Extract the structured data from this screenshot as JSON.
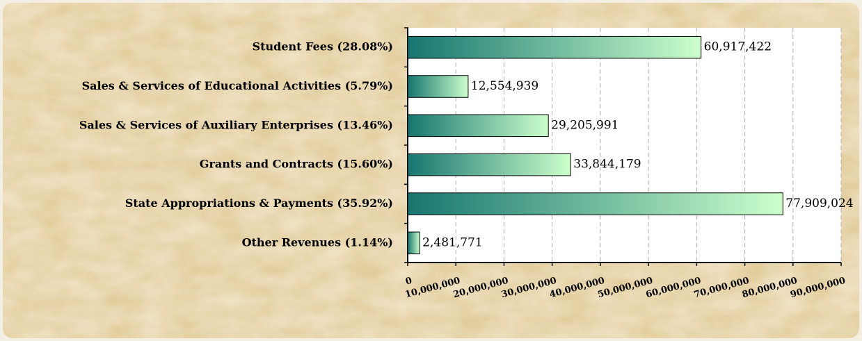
{
  "chart_data": {
    "type": "hbar",
    "categories": [
      "Student Fees (28.08%)",
      "Sales & Services of Educational Activities (5.79%)",
      "Sales & Services of Auxiliary Enterprises (13.46%)",
      "Grants and Contracts (15.60%)",
      "State Appropriations & Payments (35.92%)",
      "Other Revenues (1.14%)"
    ],
    "values": [
      60917422,
      12554939,
      29205991,
      33844179,
      77909024,
      2481771
    ],
    "value_labels": [
      "60,917,422",
      "12,554,939",
      "29,205,991",
      "33,844,179",
      "77,909,024",
      "2,481,771"
    ],
    "gradient": [
      "#16766f",
      "#ccffcc"
    ],
    "xlim": [
      0,
      90000000
    ],
    "xticks": [
      0,
      {
        "value": 10000000,
        "label": "10,000,000"
      },
      {
        "value": 20000000,
        "label": "20,000,000"
      },
      {
        "value": 30000000,
        "label": "30,000,000"
      },
      {
        "value": 40000000,
        "label": "40,000,000"
      },
      {
        "value": 50000000,
        "label": "50,000,000"
      },
      {
        "value": 60000000,
        "label": "60,000,000"
      },
      {
        "value": 70000000,
        "label": "70,000,000"
      },
      {
        "value": 80000000,
        "label": "80,000,000"
      },
      {
        "value": 90000000,
        "label": "90,000,000"
      }
    ],
    "grid": true
  }
}
